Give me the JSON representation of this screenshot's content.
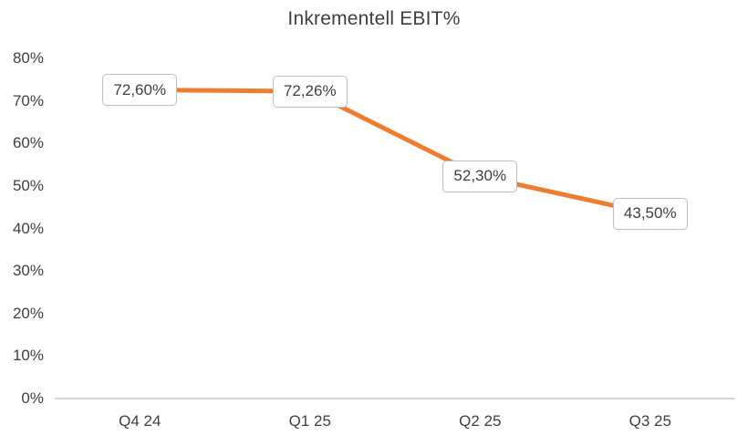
{
  "chart_data": {
    "type": "line",
    "title": "Inkrementell EBIT%",
    "categories": [
      "Q4 24",
      "Q1 25",
      "Q2 25",
      "Q3 25"
    ],
    "series": [
      {
        "name": "Inkrementell EBIT%",
        "values": [
          72.6,
          72.26,
          52.3,
          43.5
        ],
        "data_labels": [
          "72,60%",
          "72,26%",
          "52,30%",
          "43,50%"
        ],
        "color": "#ED7D31"
      }
    ],
    "xlabel": "",
    "ylabel": "",
    "ylim": [
      0,
      80
    ],
    "ytick_step": 10,
    "ytick_labels": [
      "0%",
      "10%",
      "20%",
      "30%",
      "40%",
      "50%",
      "60%",
      "70%",
      "80%"
    ],
    "grid": false,
    "legend": "none",
    "colors": {
      "line": "#ED7D31",
      "text": "#3f3f3f",
      "axis_line": "#d9d9d9",
      "label_box_fill": "#ffffff",
      "label_box_border": "#bfbfbf",
      "background": "#ffffff"
    }
  }
}
